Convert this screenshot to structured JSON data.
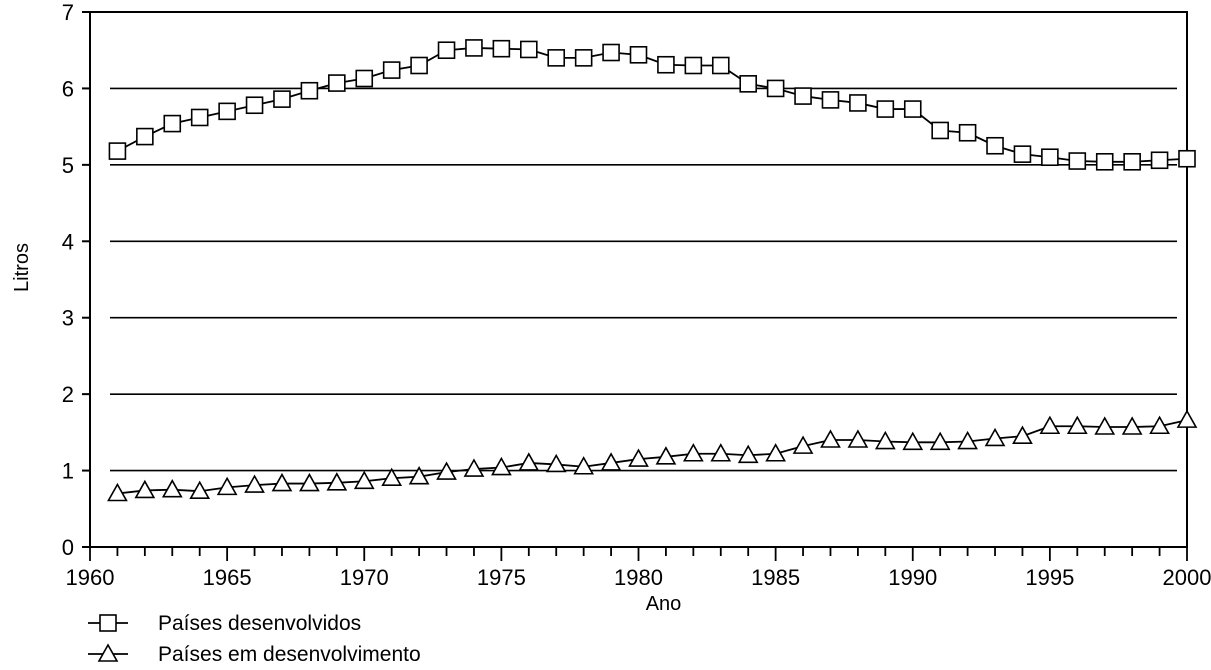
{
  "chart_data": {
    "type": "line",
    "xlabel": "Ano",
    "ylabel": "Litros",
    "xlim": [
      1960,
      2000
    ],
    "ylim": [
      0,
      7
    ],
    "x_ticks": [
      1960,
      1965,
      1970,
      1975,
      1980,
      1985,
      1990,
      1995,
      2000
    ],
    "y_ticks": [
      0,
      1,
      2,
      3,
      4,
      5,
      6,
      7
    ],
    "grid": "horizontal",
    "legend_position": "bottom-left",
    "x": [
      1961,
      1962,
      1963,
      1964,
      1965,
      1966,
      1967,
      1968,
      1969,
      1970,
      1971,
      1972,
      1973,
      1974,
      1975,
      1976,
      1977,
      1978,
      1979,
      1980,
      1981,
      1982,
      1983,
      1984,
      1985,
      1986,
      1987,
      1988,
      1989,
      1990,
      1991,
      1992,
      1993,
      1994,
      1995,
      1996,
      1997,
      1998,
      1999,
      2000
    ],
    "series": [
      {
        "name": "Países desenvolvidos",
        "marker": "square",
        "values": [
          5.18,
          5.37,
          5.54,
          5.62,
          5.7,
          5.78,
          5.86,
          5.97,
          6.07,
          6.13,
          6.24,
          6.3,
          6.5,
          6.53,
          6.52,
          6.51,
          6.4,
          6.4,
          6.47,
          6.44,
          6.31,
          6.3,
          6.3,
          6.06,
          6.0,
          5.9,
          5.85,
          5.81,
          5.73,
          5.73,
          5.45,
          5.42,
          5.25,
          5.14,
          5.1,
          5.05,
          5.04,
          5.04,
          5.06,
          5.08
        ]
      },
      {
        "name": "Países em desenvolvimento",
        "marker": "triangle",
        "values": [
          0.7,
          0.74,
          0.75,
          0.73,
          0.78,
          0.81,
          0.83,
          0.83,
          0.84,
          0.86,
          0.9,
          0.92,
          0.98,
          1.02,
          1.04,
          1.1,
          1.08,
          1.05,
          1.1,
          1.15,
          1.18,
          1.22,
          1.22,
          1.2,
          1.22,
          1.32,
          1.4,
          1.4,
          1.38,
          1.37,
          1.37,
          1.38,
          1.42,
          1.45,
          1.58,
          1.58,
          1.57,
          1.57,
          1.58,
          1.66
        ]
      }
    ]
  }
}
